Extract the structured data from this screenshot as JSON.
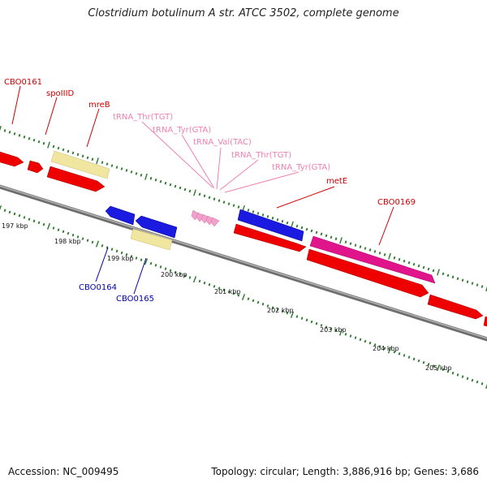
{
  "title": "Clostridium botulinum A str. ATCC 3502, complete genome",
  "footer": {
    "accession": "Accession: NC_009495",
    "topology": "Topology: circular; Length: 3,886,916 bp; Genes: 3,686"
  },
  "colors": {
    "cds_forward": "#ee0000",
    "cds_reverse": "#1a1ae0",
    "rrna_misc": "#f0e6a0",
    "rna_gene": "#e0158c",
    "trna": "#f2a0cc",
    "backbone": "#8a8a8a",
    "tick": "#2a7a2a",
    "label_forward": "#cc0000",
    "label_reverse": "#0000aa",
    "label_trna": "#f080b0"
  },
  "scale_labels": [
    "197 kbp",
    "198 kbp",
    "199 kbp",
    "200 kbp",
    "201 kbp",
    "202 kbp",
    "203 kbp",
    "204 kbp",
    "205 kbp"
  ],
  "labels_forward": [
    "CBO0161",
    "spoIIID",
    "mreB",
    "metE",
    "CBO0169"
  ],
  "labels_trna": [
    "tRNA_Thr(TGT)",
    "tRNA_Tyr(GTA)",
    "tRNA_Val(TAC)",
    "tRNA_Thr(TGT)",
    "tRNA_Tyr(GTA)"
  ],
  "labels_reverse": [
    "CBO0164",
    "CBO0165"
  ]
}
